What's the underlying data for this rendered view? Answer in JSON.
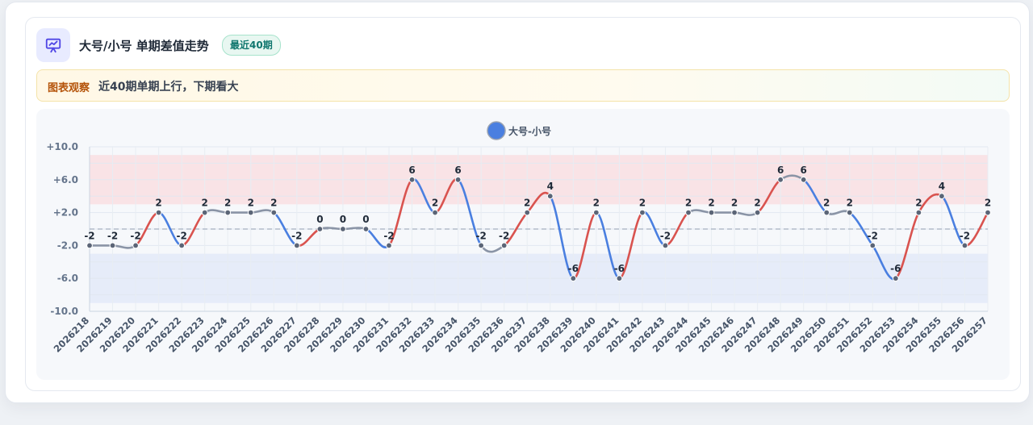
{
  "header": {
    "title": "大号/小号 单期差值走势",
    "badge": "最近40期",
    "icon": "chart-presentation-icon"
  },
  "observation": {
    "label": "图表观察",
    "text": "近40期单期上行，下期看大"
  },
  "colors": {
    "up": "#d9534f",
    "down": "#4a7fe0",
    "flat": "#8a94a6",
    "legend": "#4a7fe0",
    "band_top": "#f9e3e6",
    "band_bottom": "#e6ecf9",
    "icon_accent": "#4f46e5"
  },
  "chart_data": {
    "type": "line",
    "legend": [
      "大号-小号"
    ],
    "legend_position": "top-center",
    "grid": true,
    "ylim": [
      -10,
      10
    ],
    "yticks": [
      "+10.0",
      "+6.0",
      "+2.0",
      "-2.0",
      "-6.0",
      "-10.0"
    ],
    "reference_line": 0,
    "x": [
      "2026218",
      "2026219",
      "2026220",
      "2026221",
      "2026222",
      "2026223",
      "2026224",
      "2026225",
      "2026226",
      "2026227",
      "2026228",
      "2026229",
      "2026230",
      "2026231",
      "2026232",
      "2026233",
      "2026234",
      "2026235",
      "2026236",
      "2026237",
      "2026238",
      "2026239",
      "2026240",
      "2026241",
      "2026242",
      "2026243",
      "2026244",
      "2026245",
      "2026246",
      "2026247",
      "2026248",
      "2026249",
      "2026250",
      "2026251",
      "2026252",
      "2026253",
      "2026254",
      "2026255",
      "2026256",
      "2026257"
    ],
    "series": [
      {
        "name": "大号-小号",
        "values": [
          -2,
          -2,
          -2,
          2,
          -2,
          2,
          2,
          2,
          2,
          -2,
          0,
          0,
          0,
          -2,
          6,
          2,
          6,
          -2,
          -2,
          2,
          4,
          -6,
          2,
          -6,
          2,
          -2,
          2,
          2,
          2,
          2,
          6,
          6,
          2,
          2,
          -2,
          -6,
          2,
          4,
          -2,
          2
        ]
      }
    ]
  }
}
